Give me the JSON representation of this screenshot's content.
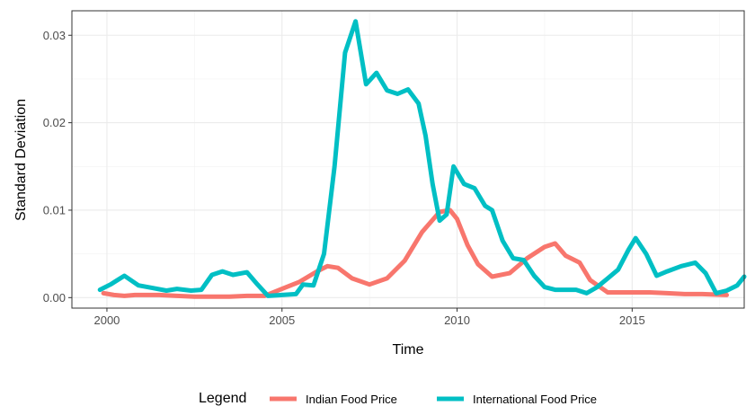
{
  "chart_data": {
    "type": "line",
    "title": "",
    "xlabel": "Time",
    "ylabel": "Standard Deviation",
    "xlim": [
      1999.0,
      2018.2
    ],
    "ylim": [
      -0.0012,
      0.0328
    ],
    "x_ticks": [
      2000,
      2005,
      2010,
      2015
    ],
    "x_tick_labels": [
      "2000",
      "2005",
      "2010",
      "2015"
    ],
    "y_ticks": [
      0.0,
      0.01,
      0.02,
      0.03
    ],
    "y_tick_labels": [
      "0.00",
      "0.01",
      "0.02",
      "0.03"
    ],
    "grid": true,
    "legend": {
      "title": "Legend",
      "position": "bottom"
    },
    "series": [
      {
        "name": "Indian Food Price",
        "color": "#F8766D",
        "points": [
          [
            1999.9,
            0.0005
          ],
          [
            2000.2,
            0.0003
          ],
          [
            2000.5,
            0.0002
          ],
          [
            2000.8,
            0.0003
          ],
          [
            2001.0,
            0.0003
          ],
          [
            2001.5,
            0.0003
          ],
          [
            2002.0,
            0.0002
          ],
          [
            2002.5,
            0.0001
          ],
          [
            2003.0,
            0.0001
          ],
          [
            2003.5,
            0.0001
          ],
          [
            2004.0,
            0.0002
          ],
          [
            2004.5,
            0.0002
          ],
          [
            2005.0,
            0.001
          ],
          [
            2005.5,
            0.0018
          ],
          [
            2006.0,
            0.003
          ],
          [
            2006.3,
            0.0036
          ],
          [
            2006.6,
            0.0034
          ],
          [
            2007.0,
            0.0022
          ],
          [
            2007.5,
            0.0015
          ],
          [
            2008.0,
            0.0022
          ],
          [
            2008.5,
            0.0042
          ],
          [
            2009.0,
            0.0075
          ],
          [
            2009.5,
            0.0098
          ],
          [
            2009.8,
            0.01
          ],
          [
            2010.0,
            0.009
          ],
          [
            2010.3,
            0.006
          ],
          [
            2010.6,
            0.0038
          ],
          [
            2011.0,
            0.0024
          ],
          [
            2011.5,
            0.0028
          ],
          [
            2012.0,
            0.0045
          ],
          [
            2012.5,
            0.0058
          ],
          [
            2012.8,
            0.0062
          ],
          [
            2013.1,
            0.0048
          ],
          [
            2013.5,
            0.004
          ],
          [
            2013.8,
            0.002
          ],
          [
            2014.3,
            0.0006
          ],
          [
            2015.0,
            0.0006
          ],
          [
            2015.5,
            0.0006
          ],
          [
            2016.0,
            0.0005
          ],
          [
            2016.5,
            0.0004
          ],
          [
            2017.0,
            0.0004
          ],
          [
            2017.7,
            0.0003
          ]
        ]
      },
      {
        "name": "International Food Price",
        "color": "#00BFC4",
        "points": [
          [
            1999.8,
            0.0009
          ],
          [
            2000.1,
            0.0015
          ],
          [
            2000.5,
            0.0025
          ],
          [
            2000.9,
            0.0014
          ],
          [
            2001.3,
            0.0011
          ],
          [
            2001.7,
            0.0008
          ],
          [
            2002.0,
            0.001
          ],
          [
            2002.4,
            0.0008
          ],
          [
            2002.7,
            0.0009
          ],
          [
            2003.0,
            0.0026
          ],
          [
            2003.3,
            0.003
          ],
          [
            2003.6,
            0.0026
          ],
          [
            2004.0,
            0.0029
          ],
          [
            2004.3,
            0.0015
          ],
          [
            2004.6,
            0.0002
          ],
          [
            2005.0,
            0.0003
          ],
          [
            2005.4,
            0.0004
          ],
          [
            2005.6,
            0.0015
          ],
          [
            2005.9,
            0.0014
          ],
          [
            2006.2,
            0.005
          ],
          [
            2006.5,
            0.015
          ],
          [
            2006.8,
            0.028
          ],
          [
            2007.1,
            0.0316
          ],
          [
            2007.4,
            0.0244
          ],
          [
            2007.7,
            0.0257
          ],
          [
            2008.0,
            0.0237
          ],
          [
            2008.3,
            0.0233
          ],
          [
            2008.6,
            0.0238
          ],
          [
            2008.9,
            0.0222
          ],
          [
            2009.1,
            0.0185
          ],
          [
            2009.3,
            0.013
          ],
          [
            2009.5,
            0.0088
          ],
          [
            2009.7,
            0.0095
          ],
          [
            2009.9,
            0.015
          ],
          [
            2010.2,
            0.013
          ],
          [
            2010.5,
            0.0125
          ],
          [
            2010.8,
            0.0105
          ],
          [
            2011.0,
            0.01
          ],
          [
            2011.3,
            0.0065
          ],
          [
            2011.6,
            0.0045
          ],
          [
            2011.9,
            0.0043
          ],
          [
            2012.2,
            0.0025
          ],
          [
            2012.5,
            0.0012
          ],
          [
            2012.8,
            0.0009
          ],
          [
            2013.1,
            0.0009
          ],
          [
            2013.4,
            0.0009
          ],
          [
            2013.7,
            0.0005
          ],
          [
            2014.0,
            0.0012
          ],
          [
            2014.3,
            0.0022
          ],
          [
            2014.6,
            0.0032
          ],
          [
            2014.9,
            0.0055
          ],
          [
            2015.1,
            0.0068
          ],
          [
            2015.4,
            0.005
          ],
          [
            2015.7,
            0.0025
          ],
          [
            2016.0,
            0.003
          ],
          [
            2016.4,
            0.0036
          ],
          [
            2016.8,
            0.004
          ],
          [
            2017.1,
            0.0028
          ],
          [
            2017.4,
            0.0005
          ],
          [
            2017.7,
            0.0008
          ],
          [
            2018.0,
            0.0014
          ],
          [
            2018.2,
            0.0024
          ]
        ]
      }
    ]
  }
}
